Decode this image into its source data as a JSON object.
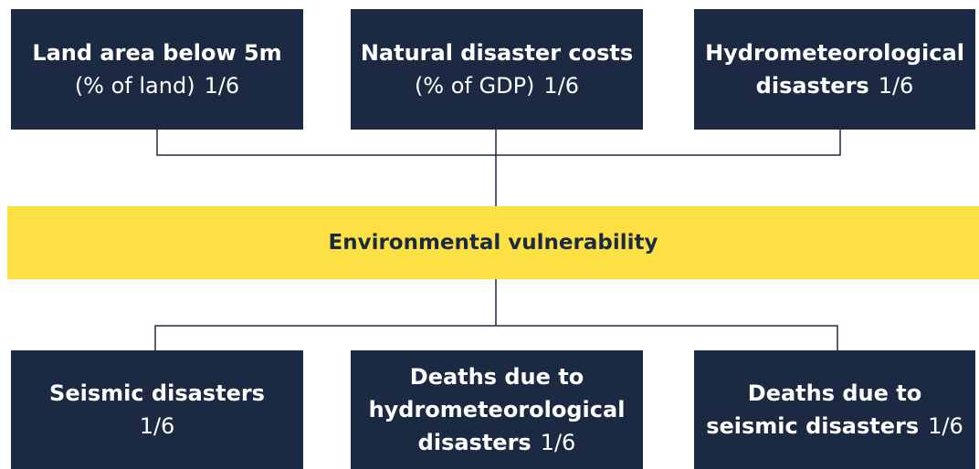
{
  "title": "Environmental vulnerability",
  "top_nodes": [
    {
      "rows": [
        [
          {
            "text": "Land area below 5m",
            "style": "bold"
          }
        ],
        [
          {
            "text": "(% of land)",
            "style": "normal"
          },
          {
            "text": "1/6",
            "style": "normal"
          }
        ]
      ]
    },
    {
      "rows": [
        [
          {
            "text": "Natural disaster costs",
            "style": "bold"
          }
        ],
        [
          {
            "text": "(% of GDP)",
            "style": "normal"
          },
          {
            "text": "1/6",
            "style": "normal"
          }
        ]
      ]
    },
    {
      "rows": [
        [
          {
            "text": "Hydrometeorological",
            "style": "bold"
          }
        ],
        [
          {
            "text": "disasters",
            "style": "bold"
          },
          {
            "text": "1/6",
            "style": "normal"
          }
        ]
      ]
    }
  ],
  "bottom_nodes": [
    {
      "rows": [
        [
          {
            "text": "Seismic disasters",
            "style": "bold"
          }
        ],
        [
          {
            "text": "1/6",
            "style": "normal"
          }
        ]
      ]
    },
    {
      "rows": [
        [
          {
            "text": "Deaths due to",
            "style": "bold"
          }
        ],
        [
          {
            "text": "hydrometeorological",
            "style": "bold"
          }
        ],
        [
          {
            "text": "disasters",
            "style": "bold"
          },
          {
            "text": "1/6",
            "style": "normal"
          }
        ]
      ]
    },
    {
      "rows": [
        [
          {
            "text": "Deaths due to",
            "style": "bold"
          }
        ],
        [
          {
            "text": "seismic disasters",
            "style": "bold"
          },
          {
            "text": "1/6",
            "style": "normal"
          }
        ]
      ]
    }
  ]
}
